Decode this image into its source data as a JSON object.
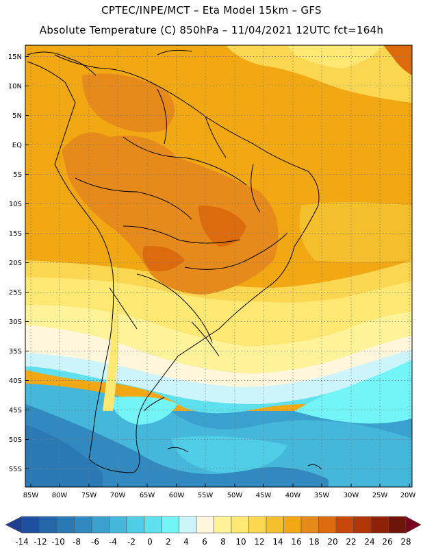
{
  "header": {
    "line1": "CPTEC/INPE/MCT –  Eta Model 15km – GFS",
    "line2": "Absolute Temperature (C) 850hPa – 11/04/2021 12UTC fct=164h"
  },
  "map": {
    "lat_labels": [
      "15N",
      "10N",
      "5N",
      "EQ",
      "5S",
      "10S",
      "15S",
      "20S",
      "25S",
      "30S",
      "35S",
      "40S",
      "45S",
      "50S",
      "55S"
    ],
    "lon_labels": [
      "85W",
      "80W",
      "75W",
      "70W",
      "65W",
      "60W",
      "55W",
      "50W",
      "45W",
      "40W",
      "35W",
      "30W",
      "25W",
      "20W"
    ],
    "gridlines": "dotted"
  },
  "colorbar": {
    "labels": [
      "-14",
      "-12",
      "-10",
      "-8",
      "-6",
      "-4",
      "-2",
      "0",
      "2",
      "4",
      "6",
      "8",
      "10",
      "12",
      "14",
      "16",
      "18",
      "20",
      "22",
      "24",
      "26",
      "28"
    ],
    "colors": [
      "#1f3f8f",
      "#1f4f9f",
      "#2566a8",
      "#2a78b4",
      "#3189bf",
      "#3aa0cd",
      "#45b7db",
      "#4fcde6",
      "#5ee0ee",
      "#73f5f7",
      "#cdf4fb",
      "#fff6dc",
      "#fff39a",
      "#fde874",
      "#fbd751",
      "#f3bf2d",
      "#f1a812",
      "#e68a1c",
      "#dc6b0e",
      "#c8480c",
      "#b23508",
      "#8f2206",
      "#6e1408",
      "#7a0020"
    ]
  }
}
